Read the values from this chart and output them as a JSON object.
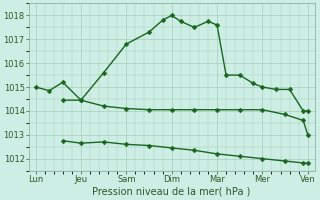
{
  "xlabel": "Pression niveau de la mer( hPa )",
  "bg_color": "#cceee4",
  "line_color": "#1a6620",
  "grid_color": "#aaccbb",
  "ylim": [
    1011.5,
    1018.5
  ],
  "yticks": [
    1012,
    1013,
    1014,
    1015,
    1016,
    1017,
    1018
  ],
  "xtick_labels": [
    "Lun",
    "Jeu",
    "Sam",
    "Dim",
    "Mar",
    "Mer",
    "Ven"
  ],
  "xtick_positions": [
    0,
    1,
    2,
    3,
    4,
    5,
    6
  ],
  "line1_x": [
    0,
    0.3,
    0.6,
    1.0,
    1.5,
    2.0,
    2.5,
    2.8,
    3.0,
    3.2,
    3.5,
    3.8,
    4.0,
    4.2,
    4.5,
    4.8,
    5.0,
    5.3,
    5.6,
    5.9,
    6.0
  ],
  "line1_y": [
    1015.0,
    1014.85,
    1015.2,
    1014.45,
    1015.6,
    1016.8,
    1017.3,
    1017.8,
    1018.0,
    1017.75,
    1017.5,
    1017.75,
    1017.6,
    1015.5,
    1015.5,
    1015.15,
    1015.0,
    1014.9,
    1014.9,
    1014.0,
    1014.0
  ],
  "line2_x": [
    0.6,
    1.0,
    1.5,
    2.0,
    2.5,
    3.0,
    3.5,
    4.0,
    4.5,
    5.0,
    5.5,
    5.9,
    6.0
  ],
  "line2_y": [
    1014.45,
    1014.45,
    1014.2,
    1014.1,
    1014.05,
    1014.05,
    1014.05,
    1014.05,
    1014.05,
    1014.05,
    1013.85,
    1013.6,
    1013.0
  ],
  "line3_x": [
    0.6,
    1.0,
    1.5,
    2.0,
    2.5,
    3.0,
    3.5,
    4.0,
    4.5,
    5.0,
    5.5,
    5.9,
    6.0
  ],
  "line3_y": [
    1012.75,
    1012.65,
    1012.7,
    1012.6,
    1012.55,
    1012.45,
    1012.35,
    1012.2,
    1012.1,
    1012.0,
    1011.9,
    1011.82,
    1011.8
  ],
  "marker_size": 2.5,
  "linewidth": 1.0
}
